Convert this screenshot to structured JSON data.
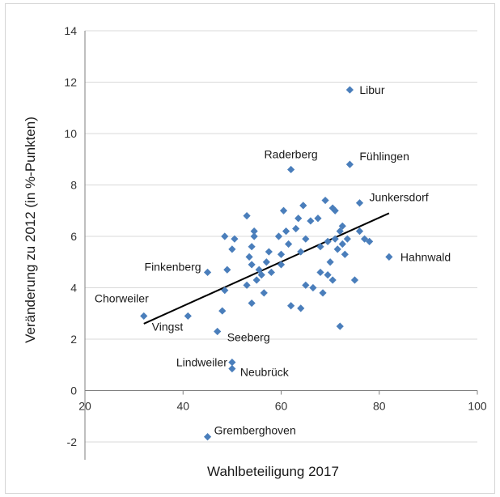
{
  "chart_data": {
    "type": "scatter",
    "title": "",
    "xlabel": "Wahlbeteiligung 2017",
    "ylabel": "Veränderung zu 2012 (in %-Punkten)",
    "xlim": [
      20,
      100
    ],
    "ylim": [
      -2,
      14
    ],
    "xticks": [
      20,
      40,
      60,
      80,
      100
    ],
    "yticks": [
      -2,
      0,
      2,
      4,
      6,
      8,
      10,
      12,
      14
    ],
    "grid": "horizontal",
    "colors": {
      "marker": "#4a7ebb",
      "trendline": "#000000",
      "grid": "#d9d9d9"
    },
    "labeled_points": [
      {
        "name": "Libur",
        "x": 74,
        "y": 11.7
      },
      {
        "name": "Raderberg",
        "x": 62,
        "y": 8.6
      },
      {
        "name": "Fühlingen",
        "x": 74,
        "y": 8.8
      },
      {
        "name": "Junkersdorf",
        "x": 76,
        "y": 7.3
      },
      {
        "name": "Hahnwald",
        "x": 82,
        "y": 5.2
      },
      {
        "name": "Finkenberg",
        "x": 45,
        "y": 4.6
      },
      {
        "name": "Chorweiler",
        "x": 32,
        "y": 2.9
      },
      {
        "name": "Vingst",
        "x": 41,
        "y": 2.9
      },
      {
        "name": "Seeberg",
        "x": 47,
        "y": 2.3
      },
      {
        "name": "Lindweiler",
        "x": 50,
        "y": 1.1
      },
      {
        "name": "Neubrück",
        "x": 50,
        "y": 0.85
      },
      {
        "name": "Gremberghoven",
        "x": 45,
        "y": -1.8
      }
    ],
    "points": [
      [
        48.5,
        6.0
      ],
      [
        50.5,
        5.9
      ],
      [
        50.0,
        5.5
      ],
      [
        49.0,
        4.7
      ],
      [
        48.5,
        3.9
      ],
      [
        48.0,
        3.1
      ],
      [
        53.0,
        6.8
      ],
      [
        54.5,
        6.2
      ],
      [
        54.5,
        6.0
      ],
      [
        54.0,
        5.6
      ],
      [
        53.5,
        5.2
      ],
      [
        54.0,
        4.9
      ],
      [
        55.5,
        4.7
      ],
      [
        56.0,
        4.5
      ],
      [
        55.0,
        4.3
      ],
      [
        53.0,
        4.1
      ],
      [
        54.0,
        3.4
      ],
      [
        56.5,
        3.8
      ],
      [
        57.5,
        5.4
      ],
      [
        57.0,
        5.0
      ],
      [
        58.0,
        4.6
      ],
      [
        59.5,
        6.0
      ],
      [
        60.0,
        5.3
      ],
      [
        60.5,
        7.0
      ],
      [
        61.0,
        6.2
      ],
      [
        60.0,
        4.9
      ],
      [
        61.5,
        5.7
      ],
      [
        62.0,
        3.3
      ],
      [
        63.0,
        6.3
      ],
      [
        63.5,
        6.7
      ],
      [
        64.5,
        7.2
      ],
      [
        64.0,
        5.4
      ],
      [
        65.0,
        5.9
      ],
      [
        65.0,
        4.1
      ],
      [
        66.0,
        6.6
      ],
      [
        66.5,
        4.0
      ],
      [
        67.5,
        6.7
      ],
      [
        68.0,
        5.6
      ],
      [
        68.0,
        4.6
      ],
      [
        69.0,
        7.4
      ],
      [
        69.5,
        5.8
      ],
      [
        69.5,
        4.5
      ],
      [
        70.0,
        5.0
      ],
      [
        70.5,
        4.3
      ],
      [
        71.0,
        7.0
      ],
      [
        71.0,
        5.9
      ],
      [
        71.5,
        5.5
      ],
      [
        72.0,
        6.2
      ],
      [
        72.5,
        5.7
      ],
      [
        73.0,
        5.3
      ],
      [
        73.5,
        5.9
      ],
      [
        72.5,
        6.4
      ],
      [
        72.0,
        2.5
      ],
      [
        76.0,
        6.2
      ],
      [
        77.0,
        5.9
      ],
      [
        78.0,
        5.8
      ],
      [
        75.0,
        4.3
      ],
      [
        64.0,
        3.2
      ],
      [
        70.5,
        7.1
      ],
      [
        68.5,
        3.8
      ]
    ],
    "trendline": {
      "x": [
        32,
        82
      ],
      "y": [
        2.6,
        6.9
      ]
    }
  }
}
